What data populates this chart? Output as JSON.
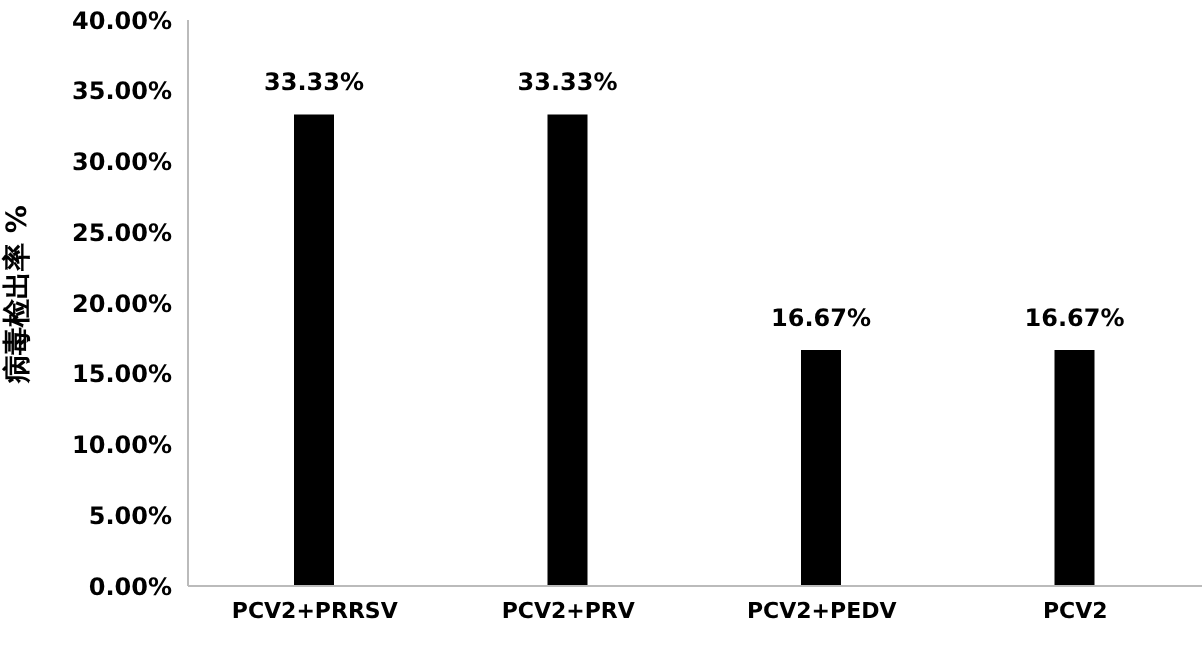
{
  "chart_data": {
    "type": "bar",
    "ylabel": "病毒检出率 %",
    "categories": [
      "PCV2+PRRSV",
      "PCV2+PRV",
      "PCV2+PEDV",
      "PCV2"
    ],
    "values": [
      33.33,
      33.33,
      16.67,
      16.67
    ],
    "value_labels": [
      "33.33%",
      "33.33%",
      "16.67%",
      "16.67%"
    ],
    "color": "#000000",
    "ylim": [
      0,
      40
    ],
    "yticks": [
      {
        "value": 0,
        "label": "0.00%"
      },
      {
        "value": 5,
        "label": "5.00%"
      },
      {
        "value": 10,
        "label": "10.00%"
      },
      {
        "value": 15,
        "label": "15.00%"
      },
      {
        "value": 20,
        "label": "20.00%"
      },
      {
        "value": 25,
        "label": "25.00%"
      },
      {
        "value": 30,
        "label": "30.00%"
      },
      {
        "value": 35,
        "label": "35.00%"
      },
      {
        "value": 40,
        "label": "40.00%"
      }
    ],
    "grid": false,
    "legend": false
  }
}
